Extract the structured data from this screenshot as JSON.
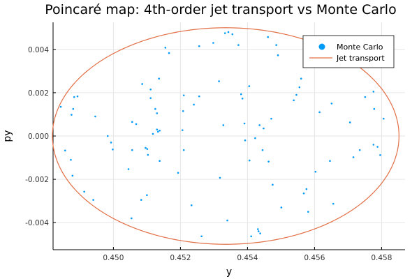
{
  "chart_data": {
    "type": "scatter",
    "title": "Poincaré map: 4th-order jet transport vs Monte Carlo",
    "xlabel": "y",
    "ylabel": "py",
    "xlim": [
      0.4482,
      0.4587
    ],
    "ylim": [
      -0.00525,
      0.00525
    ],
    "xticks": [
      0.45,
      0.452,
      0.454,
      0.456,
      0.458
    ],
    "xtick_labels": [
      "0.450",
      "0.452",
      "0.454",
      "0.456",
      "0.458"
    ],
    "yticks": [
      -0.004,
      -0.002,
      0.0,
      0.002,
      0.004
    ],
    "ytick_labels": [
      "-0.004",
      "-0.002",
      "0.000",
      "0.002",
      "0.004"
    ],
    "grid": true,
    "legend_position": "top-right",
    "colors": {
      "monte_carlo": "#009af9",
      "jet_transport": "#e26f46"
    },
    "series": [
      {
        "name": "Monte Carlo",
        "kind": "scatter",
        "points": [
          [
            0.44843,
            0.00135
          ],
          [
            0.44856,
            -0.00067
          ],
          [
            0.44873,
            -0.0011
          ],
          [
            0.44875,
            0.00098
          ],
          [
            0.44878,
            -0.00183
          ],
          [
            0.4488,
            0.00125
          ],
          [
            0.44883,
            0.0018
          ],
          [
            0.44893,
            0.00183
          ],
          [
            0.44913,
            -0.00257
          ],
          [
            0.4494,
            -0.00295
          ],
          [
            0.44946,
            0.0009
          ],
          [
            0.44983,
            0.0
          ],
          [
            0.44993,
            -0.0003
          ],
          [
            0.44998,
            -0.00062
          ],
          [
            0.45045,
            -0.00153
          ],
          [
            0.45054,
            -0.0038
          ],
          [
            0.45056,
            -0.00065
          ],
          [
            0.45056,
            0.00065
          ],
          [
            0.45068,
            0.00055
          ],
          [
            0.45083,
            -0.00295
          ],
          [
            0.45086,
            0.0024
          ],
          [
            0.45096,
            -0.00055
          ],
          [
            0.451,
            -0.00273
          ],
          [
            0.45101,
            -0.0006
          ],
          [
            0.45103,
            -0.00087
          ],
          [
            0.45111,
            0.00215
          ],
          [
            0.45111,
            0.00175
          ],
          [
            0.45118,
            0.0001
          ],
          [
            0.45125,
            0.00125
          ],
          [
            0.4513,
            0.00105
          ],
          [
            0.4513,
            0.0003
          ],
          [
            0.45133,
            0.0002
          ],
          [
            0.45136,
            0.00265
          ],
          [
            0.45138,
            -0.00115
          ],
          [
            0.45138,
            0.00025
          ],
          [
            0.45155,
            0.00408
          ],
          [
            0.45166,
            0.00383
          ],
          [
            0.45193,
            -0.0017
          ],
          [
            0.45206,
            0.00027
          ],
          [
            0.45208,
            0.00115
          ],
          [
            0.4521,
            0.00188
          ],
          [
            0.4521,
            -0.00065
          ],
          [
            0.45233,
            -0.0032
          ],
          [
            0.4524,
            0.00145
          ],
          [
            0.45256,
            0.00183
          ],
          [
            0.45256,
            0.00415
          ],
          [
            0.45263,
            -0.00463
          ],
          [
            0.45298,
            0.0043
          ],
          [
            0.45315,
            0.00253
          ],
          [
            0.45318,
            -0.00193
          ],
          [
            0.45328,
            0.0005
          ],
          [
            0.45333,
            0.00475
          ],
          [
            0.4534,
            -0.0039
          ],
          [
            0.45343,
            0.0048
          ],
          [
            0.45355,
            0.0047
          ],
          [
            0.45373,
            0.0042
          ],
          [
            0.45381,
            0.00193
          ],
          [
            0.45385,
            0.00173
          ],
          [
            0.45391,
            0.00058
          ],
          [
            0.45393,
            -0.0002
          ],
          [
            0.45405,
            0.0023
          ],
          [
            0.45406,
            -0.00113
          ],
          [
            0.45411,
            -0.00463
          ],
          [
            0.45423,
            -0.0001
          ],
          [
            0.45431,
            -0.0043
          ],
          [
            0.45433,
            -0.0044
          ],
          [
            0.45436,
            0.0005
          ],
          [
            0.45438,
            -0.0045
          ],
          [
            0.45445,
            -0.00065
          ],
          [
            0.45448,
            0.00035
          ],
          [
            0.45461,
            0.00457
          ],
          [
            0.45463,
            -0.00118
          ],
          [
            0.45471,
            0.0008
          ],
          [
            0.45475,
            -0.00225
          ],
          [
            0.45486,
            0.0042
          ],
          [
            0.45491,
            0.00373
          ],
          [
            0.45501,
            -0.0033
          ],
          [
            0.45538,
            0.00165
          ],
          [
            0.45546,
            0.0019
          ],
          [
            0.45555,
            0.00225
          ],
          [
            0.4556,
            0.00265
          ],
          [
            0.45568,
            -0.00265
          ],
          [
            0.45576,
            -0.00245
          ],
          [
            0.45581,
            -0.0035
          ],
          [
            0.45603,
            -0.00165
          ],
          [
            0.45615,
            0.0011
          ],
          [
            0.45646,
            -0.00115
          ],
          [
            0.45651,
            0.0015
          ],
          [
            0.45656,
            -0.00313
          ],
          [
            0.45706,
            0.00063
          ],
          [
            0.45716,
            -0.00098
          ],
          [
            0.45735,
            -0.00065
          ],
          [
            0.45751,
            0.0018
          ],
          [
            0.45776,
            0.00205
          ],
          [
            0.45776,
            -0.0004
          ],
          [
            0.45778,
            0.00125
          ],
          [
            0.45788,
            -0.0005
          ],
          [
            0.45796,
            -0.00088
          ],
          [
            0.45806,
            0.0008
          ]
        ]
      },
      {
        "name": "Jet transport",
        "kind": "ellipse-line",
        "ellipse": {
          "cx": 0.45335,
          "cy": 0.0,
          "rx": 0.00517,
          "ry": 0.005
        }
      }
    ]
  }
}
